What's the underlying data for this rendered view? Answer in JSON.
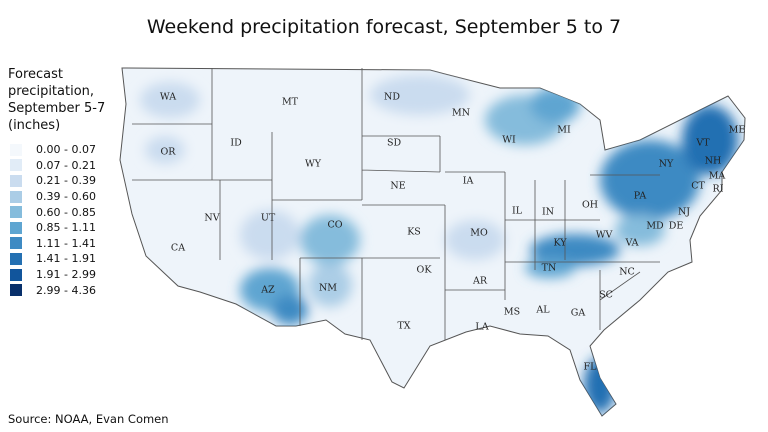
{
  "header": {
    "title": "Weekend precipitation forecast, September 5 to 7"
  },
  "legend": {
    "title": "Forecast precipitation, September 5-7 (inches)",
    "items": [
      {
        "label": "0.00 - 0.07",
        "color": "#f4f8fc"
      },
      {
        "label": "0.07 - 0.21",
        "color": "#e1ecf7"
      },
      {
        "label": "0.21 - 0.39",
        "color": "#cadcef"
      },
      {
        "label": "0.39 - 0.60",
        "color": "#abcde6"
      },
      {
        "label": "0.60 - 0.85",
        "color": "#85bcdc"
      },
      {
        "label": "0.85 - 1.11",
        "color": "#5ea5d1"
      },
      {
        "label": "1.11 - 1.41",
        "color": "#3e8ac3"
      },
      {
        "label": "1.41 - 1.91",
        "color": "#2470b2"
      },
      {
        "label": "1.91 - 2.99",
        "color": "#11559c"
      },
      {
        "label": "2.99 - 4.36",
        "color": "#08306b"
      }
    ]
  },
  "states": [
    "WA",
    "OR",
    "CA",
    "NV",
    "ID",
    "MT",
    "WY",
    "UT",
    "AZ",
    "CO",
    "NM",
    "ND",
    "SD",
    "NE",
    "KS",
    "OK",
    "TX",
    "MN",
    "IA",
    "MO",
    "AR",
    "LA",
    "WI",
    "IL",
    "MI",
    "IN",
    "OH",
    "KY",
    "TN",
    "MS",
    "AL",
    "GA",
    "FL",
    "SC",
    "NC",
    "VA",
    "WV",
    "PA",
    "NY",
    "VT",
    "NH",
    "ME",
    "MA",
    "CT",
    "RI",
    "NJ",
    "DE",
    "MD"
  ],
  "footer": {
    "source": "Source: NOAA, Evan Comen"
  }
}
